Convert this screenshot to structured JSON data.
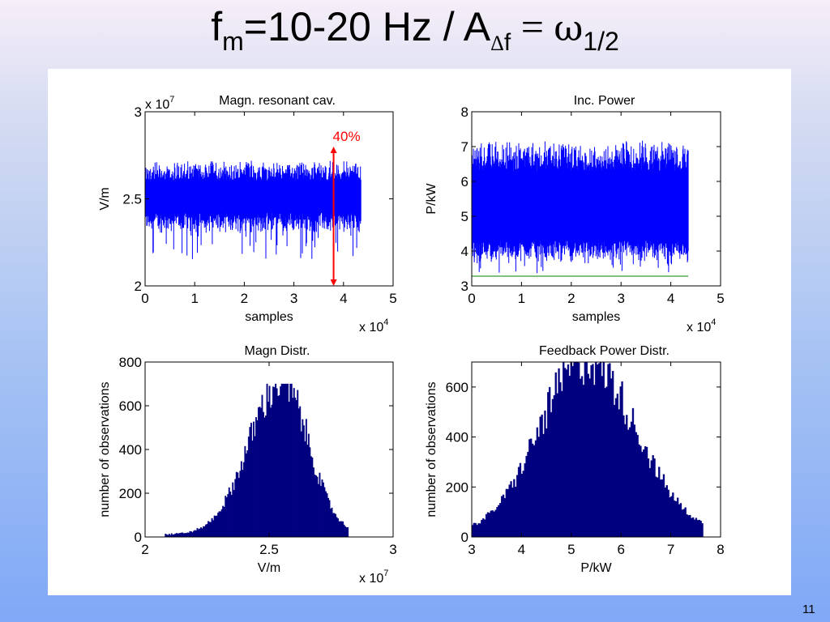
{
  "slide": {
    "title": {
      "f": "f",
      "f_sub": "m",
      "range": "=10-20 Hz / A",
      "a_sub_delta": "Δ",
      "a_sub_f": "f",
      "equals": " = ",
      "omega": "ω",
      "omega_sub": "1/2"
    },
    "page_number": "11"
  },
  "colors": {
    "trace": "#0000ff",
    "histogram": "#000080",
    "reference_line": "#008000",
    "annotation": "#ff0000",
    "axis": "#000000"
  },
  "chart_data": [
    {
      "id": "magn-resonant-cav",
      "type": "line",
      "title": "Magn. resonant cav.",
      "xlabel": "samples",
      "ylabel": "V/m",
      "x_multiplier": "x 10",
      "x_multiplier_exp": "4",
      "y_multiplier": "x 10",
      "y_multiplier_exp": "7",
      "xlim": [
        0,
        5
      ],
      "ylim": [
        2,
        3
      ],
      "xticks": [
        "0",
        "1",
        "2",
        "3",
        "4",
        "5"
      ],
      "yticks": [
        "2",
        "2.5",
        "3"
      ],
      "series": [
        {
          "x_range": [
            0,
            4.35
          ],
          "band": [
            2.42,
            2.6
          ],
          "envelope": [
            2.3,
            2.72
          ],
          "dip_min": 2.15
        }
      ],
      "reference_line": {
        "y": 2.0,
        "x_range": [
          0,
          4.35
        ]
      },
      "annotation": {
        "text": "40%",
        "x": 3.8,
        "y_from": 2.0,
        "y_to": 2.8
      }
    },
    {
      "id": "inc-power",
      "type": "line",
      "title": "Inc. Power",
      "xlabel": "samples",
      "ylabel": "P/kW",
      "x_multiplier": "x 10",
      "x_multiplier_exp": "4",
      "xlim": [
        0,
        5
      ],
      "ylim": [
        3,
        8
      ],
      "xticks": [
        "0",
        "1",
        "2",
        "3",
        "4",
        "5"
      ],
      "yticks": [
        "3",
        "4",
        "5",
        "6",
        "7",
        "8"
      ],
      "series": [
        {
          "x_range": [
            0,
            4.35
          ],
          "band": [
            4.3,
            6.3
          ],
          "envelope": [
            3.7,
            7.2
          ],
          "dip_min": 3.35
        }
      ],
      "reference_line": {
        "y": 3.28,
        "x_range": [
          0,
          4.35
        ]
      }
    },
    {
      "id": "magn-distr",
      "type": "bar",
      "title": "Magn Distr.",
      "xlabel": "V/m",
      "ylabel": "number of observations",
      "x_multiplier": "x 10",
      "x_multiplier_exp": "7",
      "xlim": [
        2,
        3
      ],
      "ylim": [
        0,
        800
      ],
      "xticks": [
        "2",
        "2.5",
        "3"
      ],
      "yticks": [
        "0",
        "200",
        "400",
        "600",
        "800"
      ],
      "distribution": {
        "support": [
          2.08,
          2.82
        ],
        "peak_x": 2.55,
        "peak_count": 700,
        "spread": 0.13,
        "skew": [
          0.12,
          0.1
        ]
      }
    },
    {
      "id": "feedback-power-distr",
      "type": "bar",
      "title": "Feedback Power Distr.",
      "xlabel": "P/kW",
      "ylabel": "number of observations",
      "xlim": [
        3,
        8
      ],
      "ylim": [
        0,
        700
      ],
      "xticks": [
        "3",
        "4",
        "5",
        "6",
        "7",
        "8"
      ],
      "yticks": [
        "0",
        "200",
        "400",
        "600"
      ],
      "distribution": {
        "support": [
          3.0,
          7.65
        ],
        "peak_x": 5.3,
        "peak_count": 700,
        "spread": 1.0,
        "skew": [
          0.75,
          0.8
        ]
      }
    }
  ]
}
